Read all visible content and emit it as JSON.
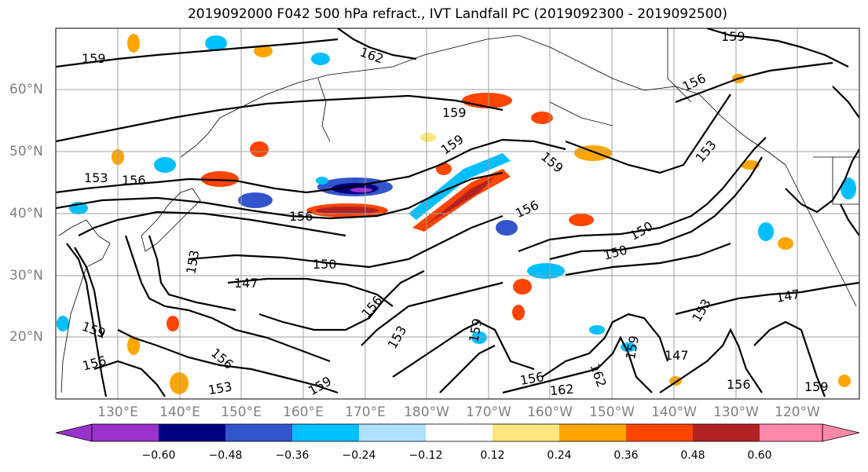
{
  "title": "2019092000 F042 500 hPa refract., IVT Landfall PC (2019092300 - 2019092500)",
  "lat_labels": [
    "60°N",
    "50°N",
    "40°N",
    "30°N",
    "20°N"
  ],
  "lon_labels": [
    "130°E",
    "140°E",
    "150°E",
    "160°E",
    "170°E",
    "180°W",
    "170°W",
    "160°W",
    "150°W",
    "140°W",
    "130°W",
    "120°W"
  ],
  "contour_labels": [
    "159",
    "162",
    "159",
    "156",
    "159",
    "159",
    "153",
    "156",
    "153",
    "156",
    "159",
    "156",
    "150",
    "150",
    "147",
    "150",
    "147",
    "153",
    "156",
    "153",
    "159",
    "156",
    "147",
    "162",
    "159",
    "153",
    "156",
    "162",
    "156",
    "159",
    "156",
    "153",
    "159",
    "159"
  ],
  "colorbar": {
    "ticks": [
      "−0.60",
      "−0.48",
      "−0.36",
      "−0.24",
      "−0.12",
      "0.12",
      "0.24",
      "0.36",
      "0.48",
      "0.60"
    ],
    "colors": [
      "#9933cc",
      "#000080",
      "#3355cc",
      "#00bfff",
      "#b0e0ff",
      "#ffffff",
      "#ffe680",
      "#ffa500",
      "#ff4500",
      "#b22222",
      "#ff88aa"
    ]
  },
  "colors": {
    "land_contour": "#000000",
    "grid": "#a0a0a0",
    "axis_label": "#808080"
  }
}
